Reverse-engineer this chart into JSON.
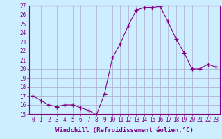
{
  "x": [
    0,
    1,
    2,
    3,
    4,
    5,
    6,
    7,
    8,
    9,
    10,
    11,
    12,
    13,
    14,
    15,
    16,
    17,
    18,
    19,
    20,
    21,
    22,
    23
  ],
  "y": [
    17.0,
    16.5,
    16.0,
    15.8,
    16.0,
    16.0,
    15.7,
    15.4,
    14.9,
    17.2,
    21.2,
    22.8,
    24.8,
    26.5,
    26.8,
    26.8,
    26.9,
    25.2,
    23.3,
    21.8,
    20.0,
    20.0,
    20.5,
    20.2
  ],
  "line_color": "#800080",
  "marker": "D",
  "marker_size": 2.5,
  "background_color": "#cceeff",
  "grid_color": "#aaaacc",
  "xlabel": "Windchill (Refroidissement éolien,°C)",
  "ylim": [
    15,
    27
  ],
  "yticks": [
    15,
    16,
    17,
    18,
    19,
    20,
    21,
    22,
    23,
    24,
    25,
    26,
    27
  ],
  "xticks": [
    0,
    1,
    2,
    3,
    4,
    5,
    6,
    7,
    8,
    9,
    10,
    11,
    12,
    13,
    14,
    15,
    16,
    17,
    18,
    19,
    20,
    21,
    22,
    23
  ],
  "tick_fontsize": 5.5,
  "xlabel_fontsize": 6.5
}
